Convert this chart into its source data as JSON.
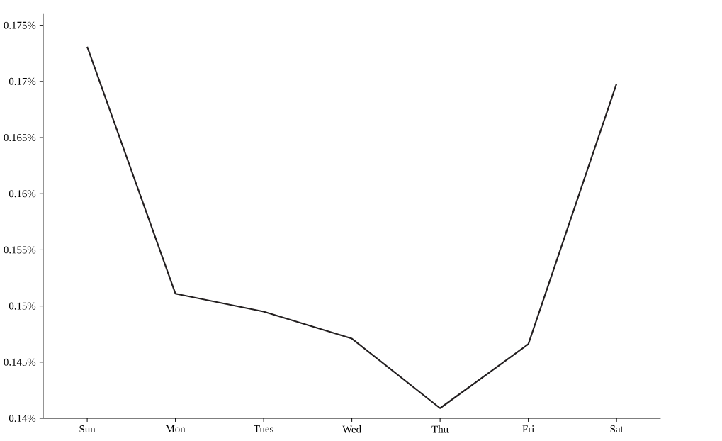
{
  "chart_data": {
    "type": "line",
    "categories": [
      "Sun",
      "Mon",
      "Tues",
      "Wed",
      "Thu",
      "Fri",
      "Sat"
    ],
    "values": [
      0.1731,
      0.1511,
      0.1495,
      0.1471,
      0.1409,
      0.1466,
      0.1698
    ],
    "color": "#231f20",
    "ylim": [
      0.14,
      0.176
    ],
    "yticks": [
      {
        "value": 0.14,
        "label": "0.14%"
      },
      {
        "value": 0.145,
        "label": "0.145%"
      },
      {
        "value": 0.15,
        "label": "0.15%"
      },
      {
        "value": 0.155,
        "label": "0.155%"
      },
      {
        "value": 0.16,
        "label": "0.16%"
      },
      {
        "value": 0.165,
        "label": "0.165%"
      },
      {
        "value": 0.17,
        "label": "0.17%"
      },
      {
        "value": 0.175,
        "label": "0.175%"
      }
    ]
  }
}
